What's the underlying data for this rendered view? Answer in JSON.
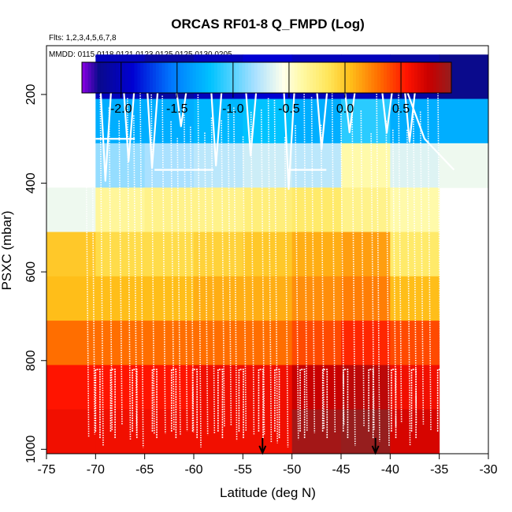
{
  "chart_data": {
    "type": "heatmap",
    "title": "ORCAS RF01-8 Q_FMPD (Log)",
    "flights_note": "Flts: 1,2,3,4,5,6,7,8",
    "dates_note": "MMDD: 0115,0118,0121,0123,0125,0125,0130,0205",
    "xlabel": "Latitude (deg N)",
    "ylabel": "PSXC (mbar)",
    "xlim": [
      -75,
      -30
    ],
    "ylim": [
      1010,
      90
    ],
    "x_ticks": [
      -75,
      -70,
      -65,
      -60,
      -55,
      -50,
      -45,
      -40,
      -35,
      -30
    ],
    "y_ticks": [
      200,
      400,
      600,
      800,
      1000
    ],
    "colorbar": {
      "range": [
        -2.35,
        0.95
      ],
      "ticks": [
        -2.0,
        -1.5,
        -1.0,
        -0.5,
        0.0,
        0.5
      ],
      "tick_labels": [
        "-2.0",
        "-1.5",
        "-1.0",
        "-0.5",
        "0.0",
        "0.5"
      ]
    },
    "grid": {
      "x_edges": [
        -75,
        -70,
        -65,
        -60,
        -55,
        -50,
        -45,
        -40,
        -35,
        -30
      ],
      "p_edges": [
        90,
        110,
        210,
        310,
        410,
        510,
        610,
        710,
        810,
        910,
        1010
      ],
      "values": [
        [
          null,
          null,
          null,
          null,
          null,
          null,
          null,
          null,
          null
        ],
        [
          null,
          -2.0,
          -2.1,
          -2.0,
          -1.9,
          -2.0,
          -2.0,
          -2.1,
          -2.2
        ],
        [
          null,
          -1.3,
          -1.3,
          -1.25,
          -1.2,
          -1.3,
          -1.1,
          -1.3,
          -1.3
        ],
        [
          null,
          -0.85,
          -0.8,
          -0.75,
          -0.7,
          -0.75,
          -0.4,
          -0.65,
          -0.6
        ],
        [
          -0.6,
          -0.35,
          -0.3,
          -0.3,
          -0.25,
          -0.2,
          -0.3,
          -0.4,
          null
        ],
        [
          0.0,
          -0.1,
          -0.1,
          -0.05,
          0.0,
          0.1,
          0.15,
          -0.2,
          null
        ],
        [
          0.05,
          0.05,
          0.05,
          0.1,
          0.1,
          0.2,
          0.25,
          0.05,
          null
        ],
        [
          0.3,
          0.3,
          0.3,
          0.3,
          0.3,
          0.4,
          0.5,
          0.4,
          null
        ],
        [
          0.55,
          0.55,
          0.55,
          0.6,
          0.6,
          0.75,
          0.8,
          0.6,
          null
        ],
        [
          0.6,
          0.6,
          0.6,
          0.6,
          0.6,
          0.9,
          0.95,
          0.7,
          null
        ]
      ]
    },
    "markers": [
      {
        "lat": -53,
        "label": "arrow"
      },
      {
        "lat": -41.5,
        "label": "arrow"
      }
    ]
  }
}
